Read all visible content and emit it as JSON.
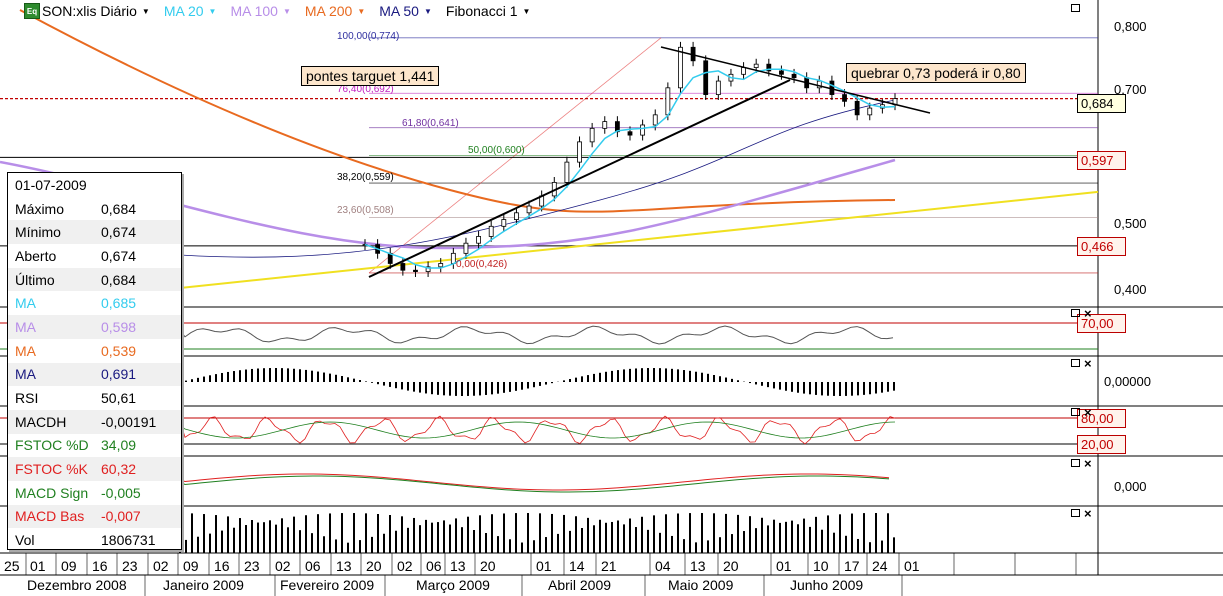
{
  "toolbar": {
    "icon": "Eq",
    "items": [
      {
        "label": "SON:xlis Diário",
        "color": "#000000"
      },
      {
        "label": "MA 20",
        "color": "#33ccee"
      },
      {
        "label": "MA 100",
        "color": "#b88ee8"
      },
      {
        "label": "MA 200",
        "color": "#e86a20"
      },
      {
        "label": "MA 50",
        "color": "#1a1a80"
      },
      {
        "label": "Fibonacci 1",
        "color": "#000000"
      }
    ]
  },
  "price_axis": {
    "labels": [
      "0,800",
      "0,700",
      "0,500",
      "0,400"
    ],
    "current_price": "0,684",
    "tags": [
      "0,597",
      "0,466"
    ]
  },
  "indicator_axis": {
    "rsi_levels": [
      "70,00"
    ],
    "macdh_level": "0,00000",
    "stoch_levels": [
      "80,00",
      "20,00"
    ],
    "macd_level": "0,000"
  },
  "fibonacci": [
    {
      "label": "100,00(0,774)",
      "color": "#3030a0"
    },
    {
      "label": "76,40(0,692)",
      "color": "#c020c0"
    },
    {
      "label": "61,80(0,641)",
      "color": "#7030a0"
    },
    {
      "label": "50,00(0,600)",
      "color": "#208020"
    },
    {
      "label": "38,20(0,559)",
      "color": "#000000"
    },
    {
      "label": "23,60(0,508)",
      "color": "#a08080"
    },
    {
      "label": "0,00(0,426)",
      "color": "#c02020"
    }
  ],
  "annotations": {
    "target": "pontes targuet 1,441",
    "breakout": "quebrar 0,73 poderá ir 0,80"
  },
  "data_box": {
    "date": "01-07-2009",
    "rows": [
      {
        "label": "Máximo",
        "value": "0,684",
        "color": "#000000"
      },
      {
        "label": "Mínimo",
        "value": "0,674",
        "color": "#000000"
      },
      {
        "label": "Aberto",
        "value": "0,674",
        "color": "#000000"
      },
      {
        "label": "Último",
        "value": "0,684",
        "color": "#000000"
      },
      {
        "label": "MA",
        "value": "0,685",
        "color": "#33ccee"
      },
      {
        "label": "MA",
        "value": "0,598",
        "color": "#b88ee8"
      },
      {
        "label": "MA",
        "value": "0,539",
        "color": "#e86a20"
      },
      {
        "label": "MA",
        "value": "0,691",
        "color": "#1a1a80"
      },
      {
        "label": "RSI",
        "value": "50,61",
        "color": "#000000"
      },
      {
        "label": "MACDH",
        "value": "-0,00191",
        "color": "#000000"
      },
      {
        "label": "FSTOC %D",
        "value": "34,09",
        "color": "#208020"
      },
      {
        "label": "FSTOC %K",
        "value": "60,32",
        "color": "#e02020"
      },
      {
        "label": "MACD Sign",
        "value": "-0,005",
        "color": "#208020"
      },
      {
        "label": "MACD Bas",
        "value": "-0,007",
        "color": "#e02020"
      },
      {
        "label": "Vol",
        "value": "1806731",
        "color": "#000000"
      }
    ]
  },
  "date_axis": {
    "days": [
      "25",
      "01",
      "09",
      "16",
      "23",
      "02",
      "09",
      "16",
      "23",
      "02",
      "06",
      "13",
      "20",
      "02",
      "06",
      "13",
      "20",
      "01",
      "14",
      "21",
      "04",
      "13",
      "20",
      "01",
      "10",
      "17",
      "24",
      "01"
    ],
    "months": [
      "Dezembro 2008",
      "Janeiro 2009",
      "Fevereiro 2009",
      "Março 2009",
      "Abril 2009",
      "Maio 2009",
      "Junho 2009"
    ]
  },
  "chart_data": {
    "type": "line",
    "instrument": "SON:xlis",
    "period": "Diário",
    "y_range": [
      0.38,
      0.83
    ],
    "price_series_name": "SON:xlis",
    "price_close": [
      0.468,
      0.455,
      0.44,
      0.43,
      0.428,
      0.435,
      0.44,
      0.455,
      0.47,
      0.48,
      0.495,
      0.505,
      0.515,
      0.525,
      0.54,
      0.56,
      0.59,
      0.62,
      0.64,
      0.65,
      0.635,
      0.63,
      0.645,
      0.66,
      0.7,
      0.76,
      0.74,
      0.69,
      0.71,
      0.72,
      0.73,
      0.735,
      0.725,
      0.72,
      0.715,
      0.7,
      0.71,
      0.69,
      0.68,
      0.66,
      0.67,
      0.675,
      0.684
    ],
    "moving_averages": [
      {
        "name": "MA 20",
        "last": 0.685
      },
      {
        "name": "MA 100",
        "last": 0.598
      },
      {
        "name": "MA 200",
        "last": 0.539
      },
      {
        "name": "MA 50",
        "last": 0.691
      }
    ],
    "rsi_last": 50.61,
    "macdh_last": -0.00191,
    "fstoc_d_last": 34.09,
    "fstoc_k_last": 60.32,
    "macd_signal_last": -0.005,
    "macd_base_last": -0.007,
    "volume_last": 1806731
  }
}
